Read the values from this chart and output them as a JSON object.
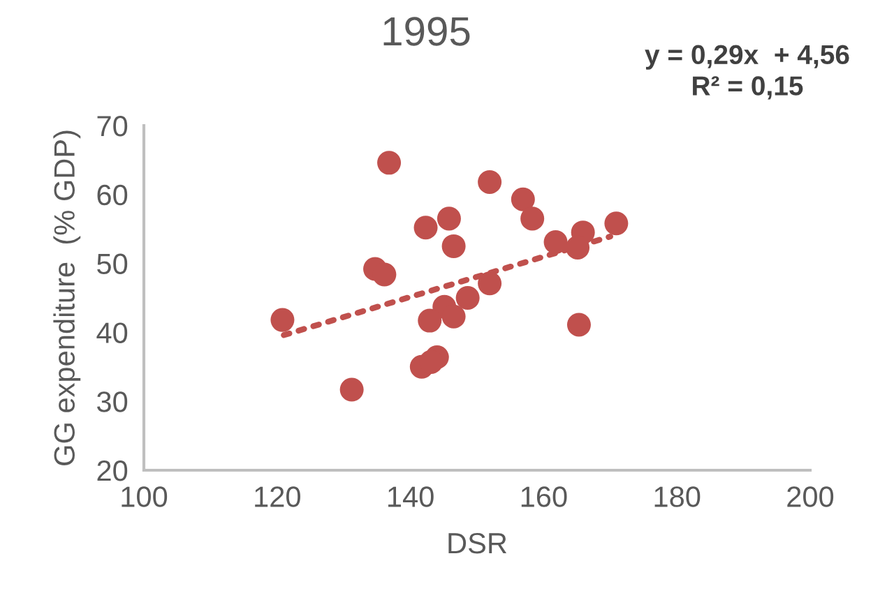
{
  "chart_data": {
    "type": "scatter",
    "title": "1995",
    "xlabel": "DSR",
    "ylabel": "GG expenditure  (% GDP)",
    "annotations": [
      "y = 0,29x  + 4,56\nR² = 0,15"
    ],
    "xlim": [
      100,
      200
    ],
    "xticks": [
      100,
      120,
      140,
      160,
      180,
      200
    ],
    "ylim": [
      20,
      70
    ],
    "yticks": [
      20,
      30,
      40,
      50,
      60,
      70
    ],
    "grid": false,
    "legend": false,
    "series": [
      {
        "marker": "circle",
        "color": "#c0504d",
        "x": [
          136.8,
          151.9,
          156.9,
          158.3,
          145.8,
          142.3,
          146.5,
          170.9,
          165.9,
          161.8,
          165.1,
          134.7,
          136.1,
          151.9,
          148.6,
          145.1,
          146.5,
          142.9,
          120.8,
          165.3,
          144.0,
          141.7,
          143.1,
          131.2
        ],
        "values": [
          64.6,
          61.8,
          59.3,
          56.5,
          56.5,
          55.2,
          52.5,
          55.8,
          54.5,
          53.1,
          52.3,
          49.2,
          48.4,
          47.1,
          45.0,
          43.7,
          42.3,
          41.7,
          41.8,
          41.1,
          36.4,
          35.0,
          35.7,
          31.7
        ]
      },
      {
        "type": "line",
        "marker": "none",
        "line_style": "dotted",
        "color": "#c0504d",
        "x": [
          121,
          170
        ],
        "values": [
          39.6,
          53.9
        ]
      }
    ]
  }
}
